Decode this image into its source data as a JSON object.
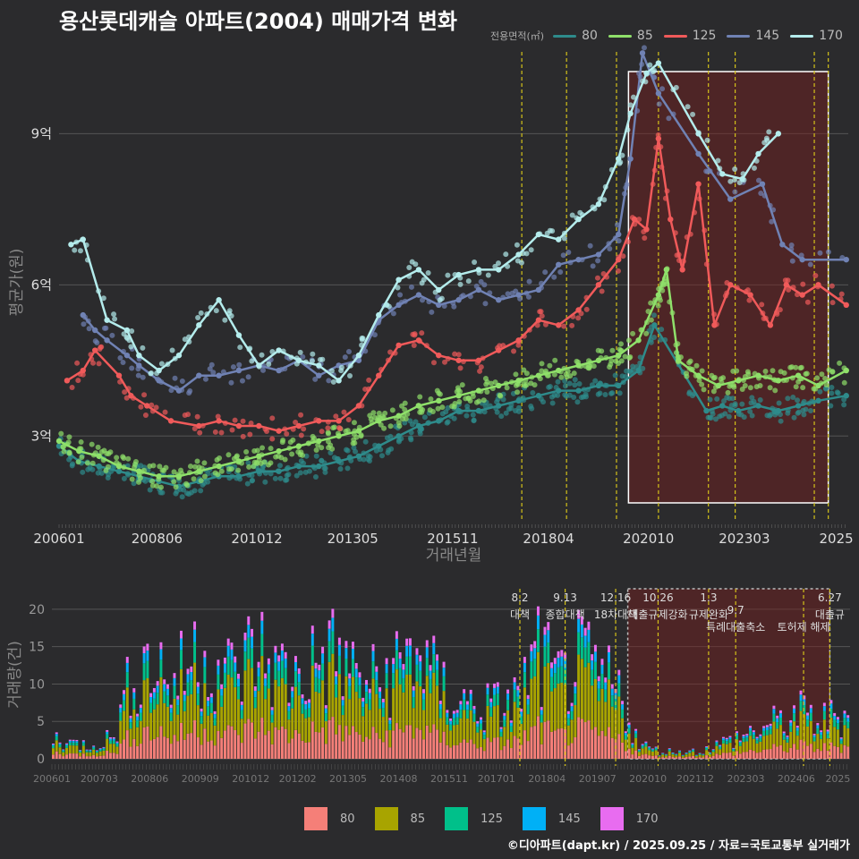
{
  "title": "용산롯데캐슬 아파트(2004) 매매가격 변화",
  "legend_top": {
    "label": "전용면적(㎡)",
    "items": [
      {
        "name": "80",
        "color": "#2e8b8b"
      },
      {
        "name": "85",
        "color": "#8fe06a"
      },
      {
        "name": "125",
        "color": "#f05a5a"
      },
      {
        "name": "145",
        "color": "#7082b4"
      },
      {
        "name": "170",
        "color": "#b4ecec"
      }
    ]
  },
  "legend_bottom": [
    {
      "name": "80",
      "color": "#f57f78"
    },
    {
      "name": "85",
      "color": "#a8a400"
    },
    {
      "name": "125",
      "color": "#00c08a"
    },
    {
      "name": "145",
      "color": "#00b0f6"
    },
    {
      "name": "170",
      "color": "#e86cf0"
    }
  ],
  "credit": "©디아파트(dapt.kr) / 2025.09.25 / 자료=국토교통부 실거래가",
  "chart_data": [
    {
      "type": "line",
      "xlabel": "거래년월",
      "ylabel": "평균가(원)",
      "x_ticks": [
        "200601",
        "200806",
        "201012",
        "201305",
        "201511",
        "201804",
        "202010",
        "202303",
        "2025"
      ],
      "y_ticks": [
        "3억",
        "6억",
        "9억"
      ],
      "y_tick_values": [
        3,
        6,
        9
      ],
      "ylim": [
        1.3,
        10.8
      ],
      "xlim": [
        2006.0,
        2025.75
      ],
      "policy_lines": [
        2017.58,
        2018.7,
        2019.95,
        2021.0,
        2022.25,
        2022.92,
        2024.9,
        2025.25
      ],
      "highlight_range": [
        2020.25,
        2025.25
      ],
      "series": [
        {
          "name": "80",
          "x": [
            2006.0,
            2006.5,
            2007.0,
            2007.5,
            2008.0,
            2008.5,
            2009.0,
            2009.5,
            2010.0,
            2010.5,
            2011.0,
            2011.5,
            2012.0,
            2012.5,
            2013.0,
            2013.5,
            2014.0,
            2014.5,
            2015.0,
            2015.5,
            2016.0,
            2016.5,
            2017.0,
            2017.5,
            2018.0,
            2018.5,
            2019.0,
            2019.5,
            2020.0,
            2020.5,
            2020.9,
            2022.2,
            2022.6,
            2023.0,
            2023.5,
            2024.0,
            2024.5,
            2025.0,
            2025.7
          ],
          "y": [
            2.8,
            2.5,
            2.4,
            2.3,
            2.2,
            2.1,
            2.0,
            2.1,
            2.2,
            2.2,
            2.3,
            2.3,
            2.4,
            2.4,
            2.5,
            2.6,
            2.8,
            3.0,
            3.2,
            3.3,
            3.5,
            3.5,
            3.6,
            3.7,
            3.8,
            3.9,
            3.9,
            4.0,
            4.0,
            4.3,
            5.2,
            3.5,
            3.6,
            3.5,
            3.6,
            3.5,
            3.6,
            3.7,
            3.8
          ]
        },
        {
          "name": "85",
          "x": [
            2006.0,
            2006.5,
            2007.0,
            2007.5,
            2008.0,
            2008.5,
            2009.0,
            2009.5,
            2010.0,
            2010.5,
            2011.0,
            2011.5,
            2012.0,
            2012.5,
            2013.0,
            2013.5,
            2014.0,
            2014.5,
            2015.0,
            2015.5,
            2016.0,
            2016.5,
            2017.0,
            2017.5,
            2018.0,
            2018.5,
            2019.0,
            2019.5,
            2020.0,
            2020.5,
            2021.0,
            2021.2,
            2021.5,
            2022.0,
            2022.5,
            2023.0,
            2023.5,
            2024.0,
            2024.5,
            2025.0,
            2025.7
          ],
          "y": [
            2.9,
            2.7,
            2.6,
            2.4,
            2.3,
            2.2,
            2.2,
            2.3,
            2.4,
            2.5,
            2.6,
            2.7,
            2.8,
            2.9,
            3.0,
            3.1,
            3.3,
            3.4,
            3.6,
            3.7,
            3.8,
            3.9,
            4.0,
            4.1,
            4.2,
            4.3,
            4.4,
            4.5,
            4.6,
            4.9,
            5.8,
            6.3,
            4.5,
            4.2,
            4.0,
            4.1,
            4.2,
            4.1,
            4.2,
            4.0,
            4.3
          ]
        },
        {
          "name": "125",
          "x": [
            2006.2,
            2006.6,
            2006.9,
            2007.5,
            2007.8,
            2008.2,
            2008.8,
            2009.5,
            2010.0,
            2010.5,
            2011.0,
            2011.5,
            2012.0,
            2012.5,
            2013.0,
            2013.5,
            2014.0,
            2014.5,
            2015.0,
            2015.5,
            2016.0,
            2016.5,
            2017.0,
            2017.5,
            2018.0,
            2018.5,
            2019.0,
            2019.5,
            2020.0,
            2020.4,
            2020.7,
            2021.0,
            2021.3,
            2021.6,
            2022.0,
            2022.4,
            2022.8,
            2023.3,
            2023.8,
            2024.2,
            2024.6,
            2025.0,
            2025.7
          ],
          "y": [
            4.1,
            4.3,
            4.7,
            4.2,
            3.8,
            3.6,
            3.3,
            3.2,
            3.3,
            3.2,
            3.2,
            3.1,
            3.2,
            3.3,
            3.3,
            3.6,
            4.2,
            4.8,
            4.9,
            4.6,
            4.5,
            4.5,
            4.7,
            4.9,
            5.3,
            5.2,
            5.5,
            6.0,
            6.5,
            7.3,
            7.1,
            8.9,
            7.3,
            6.3,
            8.0,
            5.2,
            6.0,
            5.8,
            5.2,
            6.0,
            5.8,
            6.0,
            5.6
          ]
        },
        {
          "name": "145",
          "x": [
            2006.6,
            2006.9,
            2007.2,
            2007.7,
            2008.0,
            2008.5,
            2009.0,
            2009.5,
            2010.0,
            2010.5,
            2011.0,
            2011.5,
            2012.0,
            2012.5,
            2013.0,
            2013.5,
            2014.0,
            2014.5,
            2015.0,
            2015.5,
            2016.0,
            2016.5,
            2017.0,
            2017.5,
            2018.0,
            2018.5,
            2019.0,
            2019.5,
            2020.0,
            2020.3,
            2020.6,
            2021.0,
            2022.0,
            2022.8,
            2023.6,
            2024.1,
            2024.6,
            2025.7
          ],
          "y": [
            5.4,
            5.1,
            4.9,
            4.6,
            4.4,
            4.1,
            3.9,
            4.2,
            4.2,
            4.3,
            4.4,
            4.3,
            4.5,
            4.2,
            4.4,
            4.5,
            5.3,
            5.6,
            5.8,
            5.6,
            5.7,
            5.9,
            5.7,
            5.8,
            5.9,
            6.4,
            6.5,
            6.6,
            7.0,
            8.5,
            10.6,
            9.8,
            8.6,
            7.7,
            8.0,
            6.8,
            6.5,
            6.5
          ]
        },
        {
          "name": "170",
          "x": [
            2006.3,
            2006.6,
            2007.2,
            2007.7,
            2008.0,
            2008.5,
            2009.0,
            2009.5,
            2010.0,
            2010.5,
            2011.0,
            2011.5,
            2012.0,
            2012.5,
            2013.0,
            2013.5,
            2014.0,
            2014.5,
            2015.0,
            2015.5,
            2016.0,
            2016.5,
            2017.0,
            2017.5,
            2018.0,
            2018.5,
            2019.0,
            2019.5,
            2020.0,
            2020.3,
            2020.7,
            2021.0,
            2022.0,
            2022.6,
            2023.1,
            2023.5,
            2024.0
          ],
          "y": [
            6.8,
            6.9,
            5.3,
            5.1,
            4.6,
            4.3,
            4.6,
            5.2,
            5.7,
            5.0,
            4.4,
            4.7,
            4.5,
            4.4,
            4.1,
            4.6,
            5.4,
            6.1,
            6.3,
            5.9,
            6.2,
            6.3,
            6.3,
            6.6,
            7.0,
            6.9,
            7.3,
            7.6,
            8.5,
            9.4,
            10.2,
            10.4,
            9.0,
            8.2,
            8.1,
            8.6,
            9.0
          ]
        }
      ]
    },
    {
      "type": "bar",
      "stacked": true,
      "ylabel": "거래량(건)",
      "y_ticks": [
        0,
        5,
        10,
        15,
        20
      ],
      "ylim": [
        0,
        22.5
      ],
      "x_ticks": [
        "200601",
        "200703",
        "200806",
        "200909",
        "201012",
        "201202",
        "201305",
        "201408",
        "201511",
        "201701",
        "201804",
        "201907",
        "202010",
        "202112",
        "202303",
        "202406",
        "2025"
      ],
      "xlim": [
        2006.0,
        2025.75
      ],
      "highlight_range": [
        2020.25,
        2025.25
      ],
      "annotations": [
        {
          "date": "8.2",
          "text": "대책",
          "x": 2017.58
        },
        {
          "date": "9.13",
          "text": "종합대책",
          "x": 2018.7
        },
        {
          "date": "12.16",
          "text": "18차대책",
          "x": 2019.95
        },
        {
          "date": "10.26",
          "text": "대출규제강화",
          "x": 2021.0
        },
        {
          "date": "1.3",
          "text": "규제완화",
          "x": 2022.25
        },
        {
          "date": "9.7",
          "text": "특례대출축소",
          "x": 2022.92
        },
        {
          "date": "",
          "text": "토허제 해제",
          "x": 2024.6
        },
        {
          "date": "6.27",
          "text": "대출규",
          "x": 2025.25
        }
      ],
      "series_names": [
        "80",
        "85",
        "125",
        "145",
        "170"
      ],
      "monthly_x": [
        2006.0,
        2006.5,
        2007.0,
        2007.5,
        2008.0,
        2008.5,
        2009.0,
        2009.5,
        2010.0,
        2010.5,
        2011.0,
        2011.5,
        2012.0,
        2012.5,
        2013.0,
        2013.5,
        2014.0,
        2014.5,
        2015.0,
        2015.5,
        2016.0,
        2016.5,
        2017.0,
        2017.5,
        2018.0,
        2018.5,
        2019.0,
        2019.5,
        2020.0,
        2020.5,
        2021.0,
        2021.5,
        2022.0,
        2022.5,
        2023.0,
        2023.5,
        2024.0,
        2024.5,
        2025.0,
        2025.5
      ],
      "monthly_totals": [
        3,
        2,
        2,
        3,
        12,
        13,
        10,
        14,
        13,
        11,
        15,
        12,
        11,
        13,
        14,
        11,
        10,
        12,
        15,
        10,
        8,
        7,
        7,
        8,
        14,
        10,
        13,
        11,
        9,
        2,
        1,
        1,
        1,
        2,
        3,
        4,
        5,
        6,
        5,
        6
      ]
    }
  ]
}
